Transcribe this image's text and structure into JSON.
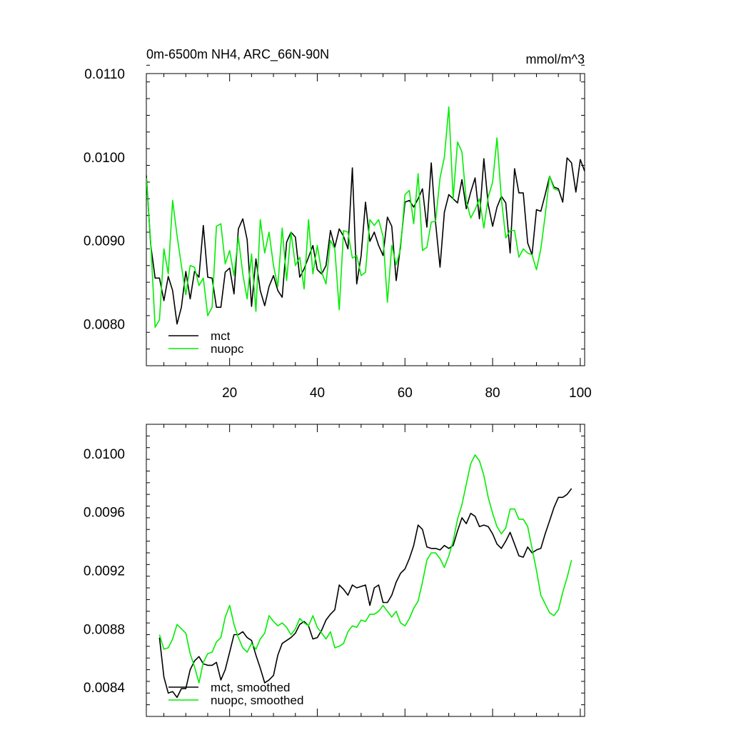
{
  "chart_data": [
    {
      "type": "line",
      "title": "0m-6500m NH4, ARC_66N-90N",
      "units": "mmol/m^3",
      "xlabel": "",
      "ylabel": "",
      "xlim": [
        1,
        101
      ],
      "ylim": [
        0.0075,
        0.011
      ],
      "xticks": [
        20,
        40,
        60,
        80,
        100
      ],
      "xtick_labels": [
        "20",
        "40",
        "60",
        "80",
        "100"
      ],
      "yticks": [
        0.008,
        0.009,
        0.01,
        0.011
      ],
      "ytick_labels": [
        "0.0080",
        "0.0090",
        "0.0100",
        "0.0110"
      ],
      "legend_position": "bottom-left",
      "x_start": 1,
      "series": [
        {
          "name": "mct",
          "color": "#000000",
          "values": [
            0.00978,
            0.00895,
            0.00855,
            0.00855,
            0.00828,
            0.00857,
            0.0084,
            0.008,
            0.0082,
            0.00863,
            0.0083,
            0.00863,
            0.00856,
            0.00918,
            0.00856,
            0.00855,
            0.0082,
            0.0082,
            0.00862,
            0.00867,
            0.00836,
            0.00914,
            0.00926,
            0.00901,
            0.00821,
            0.00878,
            0.0084,
            0.00822,
            0.00845,
            0.00858,
            0.0084,
            0.00832,
            0.00898,
            0.0091,
            0.00904,
            0.00856,
            0.00866,
            0.0088,
            0.00894,
            0.00865,
            0.0086,
            0.0087,
            0.00912,
            0.00892,
            0.00914,
            0.00905,
            0.0089,
            0.00987,
            0.00848,
            0.00882,
            0.00946,
            0.00899,
            0.0091,
            0.00894,
            0.00882,
            0.00928,
            0.00917,
            0.00852,
            0.00894,
            0.00946,
            0.00948,
            0.0094,
            0.0095,
            0.00962,
            0.00916,
            0.00993,
            0.00921,
            0.00868,
            0.00934,
            0.00955,
            0.0095,
            0.00945,
            0.00973,
            0.00938,
            0.00958,
            0.00975,
            0.00926,
            0.00998,
            0.00943,
            0.00917,
            0.0094,
            0.00953,
            0.00945,
            0.00885,
            0.00986,
            0.00957,
            0.00957,
            0.00897,
            0.00883,
            0.00937,
            0.00935,
            0.00955,
            0.00977,
            0.00964,
            0.00962,
            0.00946,
            0.00999,
            0.00993,
            0.00958,
            0.00997,
            0.00983
          ]
        },
        {
          "name": "nuopc",
          "color": "#00ee00",
          "values": [
            0.00975,
            0.00898,
            0.00796,
            0.00805,
            0.0089,
            0.0086,
            0.00948,
            0.00906,
            0.0087,
            0.00835,
            0.0087,
            0.00868,
            0.00846,
            0.00855,
            0.0081,
            0.0082,
            0.00917,
            0.0092,
            0.00872,
            0.00888,
            0.00858,
            0.00904,
            0.0086,
            0.0083,
            0.00884,
            0.00815,
            0.00925,
            0.00885,
            0.0091,
            0.0087,
            0.00845,
            0.00915,
            0.00852,
            0.0091,
            0.0087,
            0.0088,
            0.00842,
            0.00925,
            0.0086,
            0.00894,
            0.00862,
            0.00848,
            0.009,
            0.0089,
            0.00817,
            0.00912,
            0.0091,
            0.00879,
            0.00882,
            0.00858,
            0.00862,
            0.00925,
            0.00918,
            0.00925,
            0.00905,
            0.00826,
            0.00894,
            0.00871,
            0.0089,
            0.00955,
            0.0096,
            0.0092,
            0.0098,
            0.00888,
            0.00892,
            0.00922,
            0.00923,
            0.00975,
            0.01,
            0.0106,
            0.0095,
            0.01018,
            0.01006,
            0.00947,
            0.00927,
            0.00937,
            0.0095,
            0.00915,
            0.00952,
            0.0097,
            0.01023,
            0.0095,
            0.00903,
            0.00912,
            0.00912,
            0.0088,
            0.0089,
            0.00885,
            0.00883,
            0.00865,
            0.0089,
            0.0093,
            0.00977,
            0.00962,
            0.0096
          ]
        }
      ]
    },
    {
      "type": "line",
      "title": "",
      "xlabel": "",
      "ylabel": "",
      "xlim": [
        1,
        101
      ],
      "ylim": [
        0.0082,
        0.0102
      ],
      "xticks": [
        20,
        40,
        60,
        80,
        100
      ],
      "yticks": [
        0.0084,
        0.0088,
        0.0092,
        0.0096,
        0.01
      ],
      "ytick_labels": [
        "0.0084",
        "0.0088",
        "0.0092",
        "0.0096",
        "0.0100"
      ],
      "legend_position": "bottom-left",
      "x_start": 4,
      "series": [
        {
          "name": "mct, smoothed",
          "color": "#000000",
          "values": [
            0.00874,
            0.00847,
            0.00836,
            0.00837,
            0.00833,
            0.00839,
            0.00839,
            0.00852,
            0.00858,
            0.00861,
            0.00856,
            0.00855,
            0.00855,
            0.00857,
            0.00845,
            0.00852,
            0.00864,
            0.00876,
            0.00876,
            0.00878,
            0.00874,
            0.00872,
            0.00862,
            0.00853,
            0.00843,
            0.00845,
            0.00848,
            0.00862,
            0.0087,
            0.00872,
            0.00874,
            0.00877,
            0.00883,
            0.00885,
            0.00882,
            0.00873,
            0.00874,
            0.00879,
            0.00886,
            0.0089,
            0.00893,
            0.0091,
            0.00907,
            0.00903,
            0.0091,
            0.00908,
            0.00909,
            0.0091,
            0.00896,
            0.00908,
            0.0091,
            0.00898,
            0.00898,
            0.00903,
            0.00912,
            0.00918,
            0.00921,
            0.00928,
            0.00937,
            0.00951,
            0.00948,
            0.00936,
            0.00935,
            0.00935,
            0.00934,
            0.00937,
            0.00935,
            0.00937,
            0.00947,
            0.00956,
            0.00952,
            0.00959,
            0.00957,
            0.0095,
            0.00951,
            0.0095,
            0.00945,
            0.00938,
            0.00935,
            0.0094,
            0.00946,
            0.00938,
            0.0093,
            0.00929,
            0.00936,
            0.00932,
            0.00934,
            0.00935,
            0.00945,
            0.00954,
            0.00963,
            0.0097,
            0.0097,
            0.00972,
            0.00976
          ]
        },
        {
          "name": "nuopc, smoothed",
          "color": "#00ee00",
          "values": [
            0.00876,
            0.00866,
            0.00867,
            0.00873,
            0.00883,
            0.0088,
            0.00877,
            0.00863,
            0.00854,
            0.00843,
            0.00857,
            0.00863,
            0.00864,
            0.00871,
            0.00874,
            0.00888,
            0.00896,
            0.00883,
            0.00874,
            0.00867,
            0.00864,
            0.0087,
            0.00866,
            0.00873,
            0.00877,
            0.00889,
            0.00885,
            0.00882,
            0.00884,
            0.00881,
            0.00876,
            0.0088,
            0.00887,
            0.00884,
            0.00882,
            0.00889,
            0.00881,
            0.00877,
            0.00873,
            0.00878,
            0.00867,
            0.00868,
            0.0087,
            0.00878,
            0.00882,
            0.00881,
            0.00886,
            0.00885,
            0.0089,
            0.0089,
            0.00892,
            0.00896,
            0.00892,
            0.00888,
            0.00892,
            0.00884,
            0.00882,
            0.00887,
            0.00894,
            0.00899,
            0.00912,
            0.00927,
            0.00932,
            0.00932,
            0.00928,
            0.00922,
            0.0093,
            0.0094,
            0.00955,
            0.00965,
            0.00979,
            0.00993,
            0.00999,
            0.00995,
            0.00985,
            0.0097,
            0.00959,
            0.0095,
            0.00945,
            0.00949,
            0.00962,
            0.00962,
            0.00955,
            0.00955,
            0.0095,
            0.00935,
            0.0092,
            0.00903,
            0.00897,
            0.00891,
            0.00889,
            0.00893,
            0.00905,
            0.00915,
            0.00927
          ]
        }
      ]
    }
  ]
}
